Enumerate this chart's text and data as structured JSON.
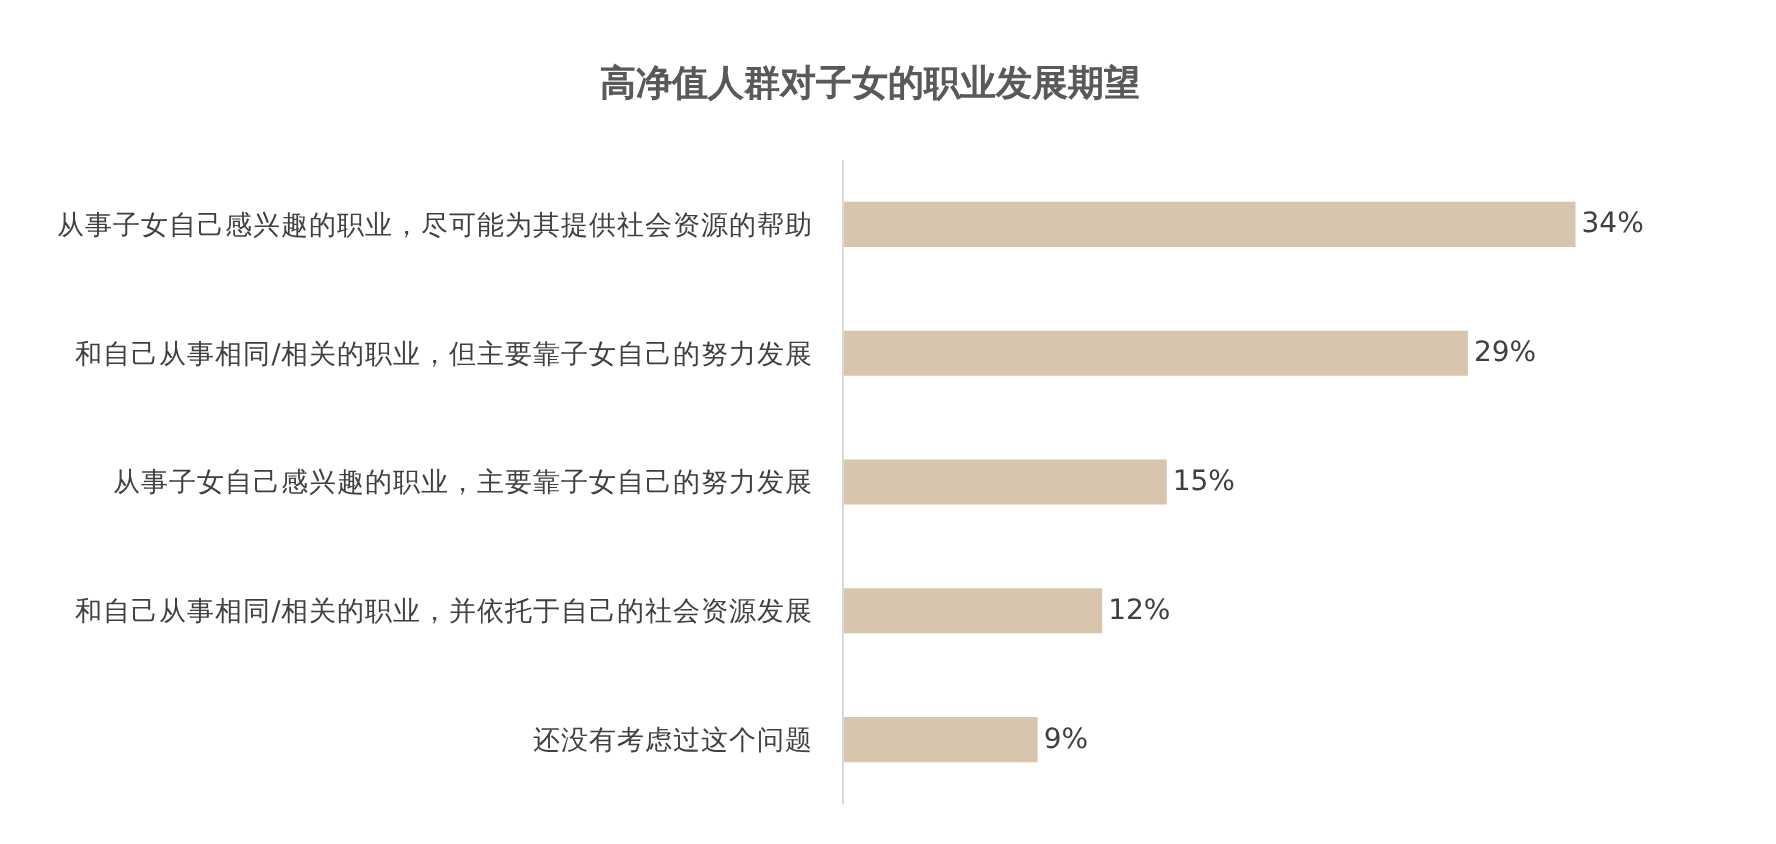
{
  "chart_data": {
    "type": "bar",
    "orientation": "horizontal",
    "title": "高净值人群对子女的职业发展期望",
    "categories": [
      "从事子女自己感兴趣的职业，尽可能为其提供社会资源的帮助",
      "和自己从事相同/相关的职业，但主要靠子女自己的努力发展",
      "从事子女自己感兴趣的职业，主要靠子女自己的努力发展",
      "和自己从事相同/相关的职业，并依托于自己的社会资源发展",
      "还没有考虑过这个问题"
    ],
    "values": [
      34,
      29,
      15,
      12,
      9
    ],
    "value_labels": [
      "34%",
      "29%",
      "15%",
      "12%",
      "9%"
    ],
    "color": "#d8c5ad",
    "tick_labels": "y"
  }
}
